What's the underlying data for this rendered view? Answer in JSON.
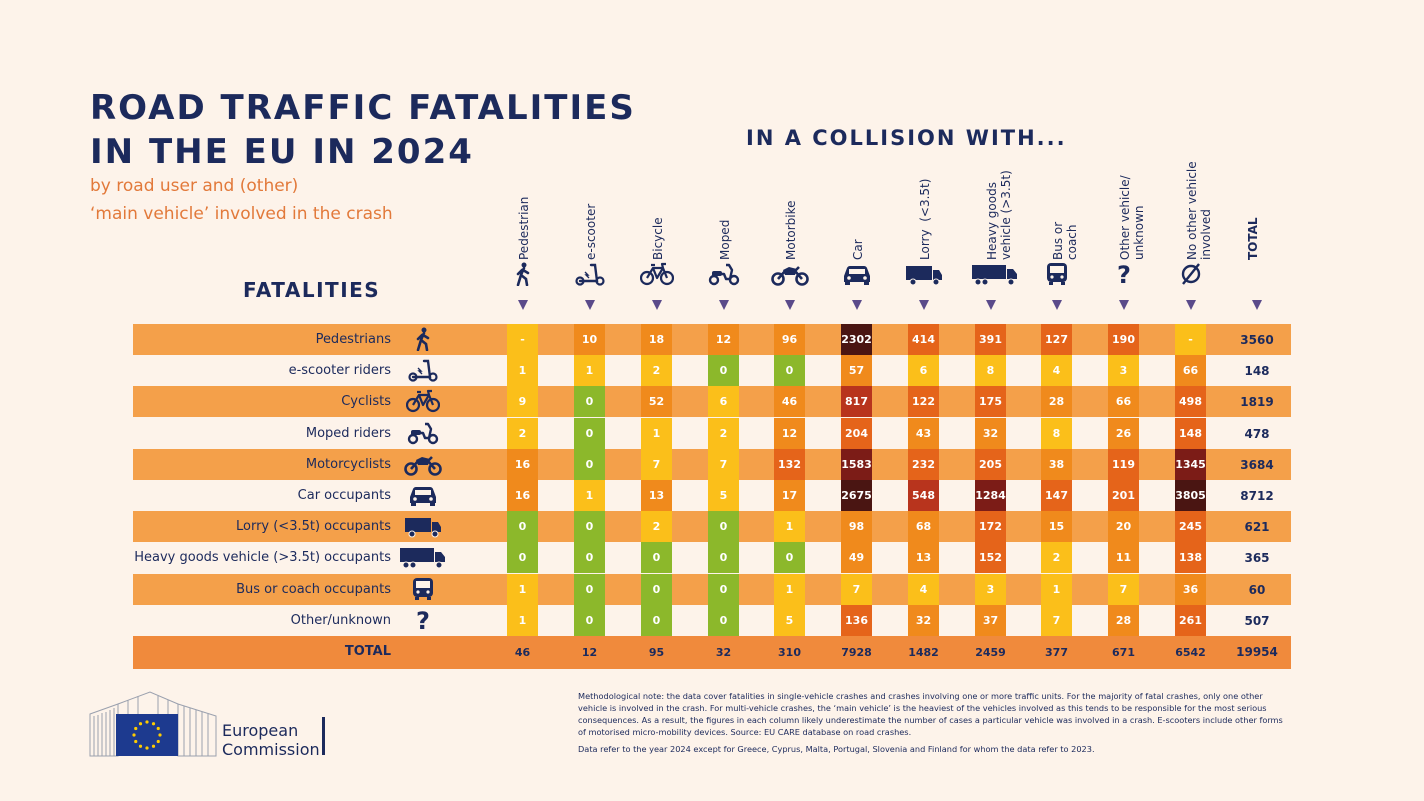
{
  "header": {
    "title_line1": "ROAD TRAFFIC FATALITIES",
    "title_line2": "IN THE EU IN 2024",
    "subtitle_line1": "by road user and (other)",
    "subtitle_line2": "‘main vehicle’ involved in the crash",
    "collision_label": "IN A COLLISION WITH...",
    "fatalities_label": "FATALITIES"
  },
  "columns": [
    {
      "label": "Pedestrian",
      "icon": "pedestrian-icon"
    },
    {
      "label": "e-scooter",
      "icon": "e-scooter-icon"
    },
    {
      "label": "Bicycle",
      "icon": "bicycle-icon"
    },
    {
      "label": "Moped",
      "icon": "moped-icon"
    },
    {
      "label": "Motorbike",
      "icon": "motorbike-icon"
    },
    {
      "label": "Car",
      "icon": "car-icon"
    },
    {
      "label": "Lorry  (<3.5t)",
      "icon": "lorry-icon"
    },
    {
      "label": "Heavy goods\nvehicle (>3.5t)",
      "icon": "heavy-goods-vehicle-icon"
    },
    {
      "label": "Bus or\ncoach",
      "icon": "bus-icon"
    },
    {
      "label": "Other vehicle/\nunknown",
      "icon": "question-mark-icon"
    },
    {
      "label": "No other vehicle\ninvolved",
      "icon": "empty-set-icon"
    }
  ],
  "total_label": "TOTAL",
  "chart_data": {
    "type": "heatmap",
    "title": "ROAD TRAFFIC FATALITIES IN THE EU IN 2024",
    "x_categories": [
      "Pedestrian",
      "e-scooter",
      "Bicycle",
      "Moped",
      "Motorbike",
      "Car",
      "Lorry (<3.5t)",
      "Heavy goods vehicle (>3.5t)",
      "Bus or coach",
      "Other vehicle/unknown",
      "No other vehicle involved"
    ],
    "y_categories": [
      "Pedestrians",
      "e-scooter riders",
      "Cyclists",
      "Moped riders",
      "Motorcyclists",
      "Car occupants",
      "Lorry (<3.5t) occupants",
      "Heavy goods vehicle (>3.5t) occupants",
      "Bus or coach occupants",
      "Other/unknown"
    ],
    "rows": [
      {
        "label": "Pedestrians",
        "icon": "pedestrian-icon",
        "values": [
          "-",
          "10",
          "18",
          "12",
          "96",
          "2302",
          "414",
          "391",
          "127",
          "190",
          "-"
        ],
        "total": "3560"
      },
      {
        "label": "e-scooter riders",
        "icon": "e-scooter-icon",
        "values": [
          "1",
          "1",
          "2",
          "0",
          "0",
          "57",
          "6",
          "8",
          "4",
          "3",
          "66"
        ],
        "total": "148"
      },
      {
        "label": "Cyclists",
        "icon": "bicycle-icon",
        "values": [
          "9",
          "0",
          "52",
          "6",
          "46",
          "817",
          "122",
          "175",
          "28",
          "66",
          "498"
        ],
        "total": "1819"
      },
      {
        "label": "Moped riders",
        "icon": "moped-icon",
        "values": [
          "2",
          "0",
          "1",
          "2",
          "12",
          "204",
          "43",
          "32",
          "8",
          "26",
          "148"
        ],
        "total": "478"
      },
      {
        "label": "Motorcyclists",
        "icon": "motorbike-icon",
        "values": [
          "16",
          "0",
          "7",
          "7",
          "132",
          "1583",
          "232",
          "205",
          "38",
          "119",
          "1345"
        ],
        "total": "3684"
      },
      {
        "label": "Car occupants",
        "icon": "car-icon",
        "values": [
          "16",
          "1",
          "13",
          "5",
          "17",
          "2675",
          "548",
          "1284",
          "147",
          "201",
          "3805"
        ],
        "total": "8712"
      },
      {
        "label": "Lorry (<3.5t) occupants",
        "icon": "lorry-icon",
        "values": [
          "0",
          "0",
          "2",
          "0",
          "1",
          "98",
          "68",
          "172",
          "15",
          "20",
          "245"
        ],
        "total": "621"
      },
      {
        "label": "Heavy goods vehicle (>3.5t) occupants",
        "icon": "heavy-goods-vehicle-icon",
        "values": [
          "0",
          "0",
          "0",
          "0",
          "0",
          "49",
          "13",
          "152",
          "2",
          "11",
          "138"
        ],
        "total": "365"
      },
      {
        "label": "Bus or coach occupants",
        "icon": "bus-icon",
        "values": [
          "1",
          "0",
          "0",
          "0",
          "1",
          "7",
          "4",
          "3",
          "1",
          "7",
          "36"
        ],
        "total": "60"
      },
      {
        "label": "Other/unknown",
        "icon": "question-mark-icon",
        "values": [
          "1",
          "0",
          "0",
          "0",
          "5",
          "136",
          "32",
          "37",
          "7",
          "28",
          "261"
        ],
        "total": "507"
      }
    ],
    "total_row": {
      "label": "TOTAL",
      "values": [
        "46",
        "12",
        "95",
        "32",
        "310",
        "7928",
        "1482",
        "2459",
        "377",
        "671",
        "6542"
      ],
      "total": "19954"
    },
    "colors": {
      "zero": "#8cb82b",
      "low": "#fbbf1a",
      "mid": "#f08a1c",
      "high": "#e5641a",
      "higher": "#b8341d",
      "highest": "#7c1c17",
      "extreme": "#4a1512",
      "band_orange": "#f4a04a",
      "band_total": "#f08a3c"
    }
  },
  "footer": {
    "note": "Methodological note: the data cover fatalities in single-vehicle crashes and crashes involving one or more traffic units. For the majority of fatal crashes, only one other vehicle is involved in the crash. For multi-vehicle crashes, the ‘main vehicle’ is the heaviest of the vehicles involved as this tends to be responsible for the most serious consequences. As a result, the figures in each column likely underestimate the number of cases a particular vehicle was involved in a crash. E-scooters include other forms of motorised micro-mobility devices. Source: EU CARE database on road crashes.",
    "note2": "Data refer to the year 2024 except for Greece, Cyprus, Malta, Portugal, Slovenia and Finland for whom the data refer to 2023.",
    "logo_line1": "European",
    "logo_line2": "Commission"
  }
}
